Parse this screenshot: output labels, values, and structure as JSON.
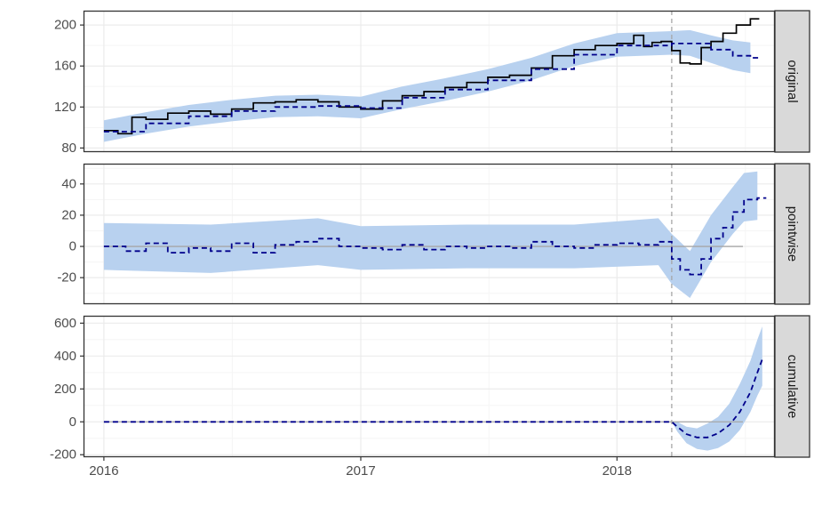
{
  "chart_data": {
    "type": "line",
    "colors": {
      "band": "#b8d1ef",
      "actual": "#000000",
      "predicted": "#00008b",
      "zero_line": "#a6a6a6",
      "intervention_line": "#a6a6a6",
      "strip_bg": "#d9d9d9",
      "grid_major": "#ebebeb",
      "grid_minor": "#f5f5f5"
    },
    "x_axis": {
      "type": "date",
      "range": [
        "2015-12-03",
        "2018-08-14"
      ],
      "ticks": [
        "2016-01-01",
        "2017-01-01",
        "2018-01-01"
      ],
      "tick_labels": [
        "2016",
        "2017",
        "2018"
      ]
    },
    "intervention_date": "2018-03-20",
    "grid": true,
    "panels": [
      {
        "label": "original",
        "ylim": [
          76,
          214
        ],
        "yticks": [
          80,
          120,
          160,
          200
        ],
        "series": [
          {
            "role": "actual",
            "style": "solid-step",
            "points": [
              [
                "2016-01-01",
                97
              ],
              [
                "2016-01-21",
                94
              ],
              [
                "2016-02-10",
                110
              ],
              [
                "2016-03-01",
                108
              ],
              [
                "2016-04-01",
                114
              ],
              [
                "2016-05-01",
                116
              ],
              [
                "2016-06-01",
                113
              ],
              [
                "2016-07-01",
                118
              ],
              [
                "2016-08-01",
                124
              ],
              [
                "2016-09-01",
                125
              ],
              [
                "2016-10-01",
                127
              ],
              [
                "2016-11-01",
                125
              ],
              [
                "2016-12-01",
                120
              ],
              [
                "2017-01-01",
                118
              ],
              [
                "2017-02-01",
                126
              ],
              [
                "2017-03-01",
                131
              ],
              [
                "2017-04-01",
                135
              ],
              [
                "2017-05-01",
                139
              ],
              [
                "2017-06-01",
                144
              ],
              [
                "2017-07-01",
                149
              ],
              [
                "2017-08-01",
                151
              ],
              [
                "2017-09-01",
                158
              ],
              [
                "2017-10-01",
                170
              ],
              [
                "2017-11-01",
                176
              ],
              [
                "2017-12-01",
                180
              ],
              [
                "2018-01-01",
                182
              ],
              [
                "2018-01-25",
                190
              ],
              [
                "2018-02-08",
                179
              ],
              [
                "2018-02-20",
                183
              ],
              [
                "2018-03-05",
                184
              ],
              [
                "2018-03-20",
                175
              ],
              [
                "2018-04-01",
                163
              ],
              [
                "2018-04-15",
                162
              ],
              [
                "2018-05-01",
                178
              ],
              [
                "2018-05-15",
                184
              ],
              [
                "2018-06-01",
                192
              ],
              [
                "2018-06-20",
                200
              ],
              [
                "2018-07-10",
                206
              ]
            ]
          },
          {
            "role": "predicted",
            "style": "dashed-step",
            "points": [
              [
                "2016-01-01",
                96
              ],
              [
                "2016-03-01",
                104
              ],
              [
                "2016-05-01",
                111
              ],
              [
                "2016-07-01",
                116
              ],
              [
                "2016-09-01",
                120
              ],
              [
                "2016-11-01",
                121
              ],
              [
                "2017-01-01",
                119
              ],
              [
                "2017-03-01",
                129
              ],
              [
                "2017-05-01",
                137
              ],
              [
                "2017-07-01",
                146
              ],
              [
                "2017-09-01",
                157
              ],
              [
                "2017-11-01",
                171
              ],
              [
                "2018-01-01",
                180
              ],
              [
                "2018-03-20",
                182
              ],
              [
                "2018-04-15",
                182
              ],
              [
                "2018-05-15",
                176
              ],
              [
                "2018-06-15",
                170
              ],
              [
                "2018-07-10",
                168
              ]
            ]
          }
        ],
        "band": [
          [
            "2016-01-01",
            86,
            107
          ],
          [
            "2016-03-01",
            94,
            115
          ],
          [
            "2016-05-01",
            101,
            122
          ],
          [
            "2016-07-01",
            106,
            127
          ],
          [
            "2016-09-01",
            110,
            131
          ],
          [
            "2016-11-01",
            111,
            132
          ],
          [
            "2017-01-01",
            109,
            130
          ],
          [
            "2017-03-01",
            118,
            140
          ],
          [
            "2017-05-01",
            126,
            148
          ],
          [
            "2017-07-01",
            135,
            157
          ],
          [
            "2017-09-01",
            146,
            168
          ],
          [
            "2017-11-01",
            160,
            182
          ],
          [
            "2018-01-01",
            169,
            192
          ],
          [
            "2018-03-20",
            171,
            194
          ],
          [
            "2018-04-15",
            170,
            195
          ],
          [
            "2018-05-15",
            163,
            190
          ],
          [
            "2018-06-15",
            156,
            185
          ],
          [
            "2018-07-10",
            153,
            183
          ]
        ]
      },
      {
        "label": "pointwise",
        "ylim": [
          -37,
          53
        ],
        "yticks": [
          -20,
          0,
          20,
          40
        ],
        "zero_line": true,
        "series": [
          {
            "role": "predicted",
            "style": "dashed-step",
            "points": [
              [
                "2016-01-01",
                0
              ],
              [
                "2016-02-01",
                -3
              ],
              [
                "2016-03-01",
                2
              ],
              [
                "2016-04-01",
                -4
              ],
              [
                "2016-05-01",
                -1
              ],
              [
                "2016-06-01",
                -3
              ],
              [
                "2016-07-01",
                2
              ],
              [
                "2016-08-01",
                -4
              ],
              [
                "2016-09-01",
                1
              ],
              [
                "2016-10-01",
                3
              ],
              [
                "2016-11-01",
                5
              ],
              [
                "2016-12-01",
                0
              ],
              [
                "2017-01-01",
                -1
              ],
              [
                "2017-02-01",
                -2
              ],
              [
                "2017-03-01",
                1
              ],
              [
                "2017-04-01",
                -2
              ],
              [
                "2017-05-01",
                0
              ],
              [
                "2017-06-01",
                -1
              ],
              [
                "2017-07-01",
                0
              ],
              [
                "2017-08-01",
                -1
              ],
              [
                "2017-09-01",
                3
              ],
              [
                "2017-10-01",
                0
              ],
              [
                "2017-11-01",
                -1
              ],
              [
                "2017-12-01",
                1
              ],
              [
                "2018-01-01",
                2
              ],
              [
                "2018-02-01",
                1
              ],
              [
                "2018-03-01",
                3
              ],
              [
                "2018-03-20",
                -8
              ],
              [
                "2018-04-01",
                -15
              ],
              [
                "2018-04-15",
                -18
              ],
              [
                "2018-05-01",
                -8
              ],
              [
                "2018-05-15",
                5
              ],
              [
                "2018-06-01",
                12
              ],
              [
                "2018-06-15",
                22
              ],
              [
                "2018-07-01",
                30
              ],
              [
                "2018-07-20",
                31
              ]
            ]
          }
        ],
        "band": [
          [
            "2016-01-01",
            -15,
            15
          ],
          [
            "2016-06-01",
            -17,
            14
          ],
          [
            "2016-11-01",
            -12,
            18
          ],
          [
            "2017-01-01",
            -15,
            13
          ],
          [
            "2017-06-01",
            -14,
            14
          ],
          [
            "2017-11-01",
            -14,
            14
          ],
          [
            "2018-03-01",
            -12,
            18
          ],
          [
            "2018-03-20",
            -24,
            8
          ],
          [
            "2018-04-15",
            -33,
            -3
          ],
          [
            "2018-05-15",
            -10,
            20
          ],
          [
            "2018-06-15",
            8,
            38
          ],
          [
            "2018-07-01",
            16,
            47
          ],
          [
            "2018-07-20",
            17,
            48
          ]
        ]
      },
      {
        "label": "cumulative",
        "ylim": [
          -215,
          645
        ],
        "yticks": [
          -200,
          0,
          200,
          400,
          600
        ],
        "zero_line": true,
        "series": [
          {
            "role": "predicted",
            "style": "dashed",
            "points": [
              [
                "2016-01-01",
                0
              ],
              [
                "2018-03-20",
                0
              ],
              [
                "2018-03-28",
                -30
              ],
              [
                "2018-04-10",
                -75
              ],
              [
                "2018-04-25",
                -95
              ],
              [
                "2018-05-10",
                -95
              ],
              [
                "2018-05-25",
                -70
              ],
              [
                "2018-06-10",
                -20
              ],
              [
                "2018-06-25",
                60
              ],
              [
                "2018-07-10",
                180
              ],
              [
                "2018-07-20",
                300
              ],
              [
                "2018-07-27",
                380
              ]
            ]
          }
        ],
        "band": [
          [
            "2016-01-01",
            0,
            0
          ],
          [
            "2018-03-20",
            0,
            0
          ],
          [
            "2018-03-28",
            -60,
            0
          ],
          [
            "2018-04-10",
            -130,
            -30
          ],
          [
            "2018-04-25",
            -165,
            -40
          ],
          [
            "2018-05-10",
            -175,
            -10
          ],
          [
            "2018-05-25",
            -160,
            30
          ],
          [
            "2018-06-10",
            -120,
            110
          ],
          [
            "2018-06-25",
            -50,
            230
          ],
          [
            "2018-07-10",
            60,
            370
          ],
          [
            "2018-07-20",
            160,
            500
          ],
          [
            "2018-07-27",
            220,
            580
          ]
        ]
      }
    ]
  }
}
